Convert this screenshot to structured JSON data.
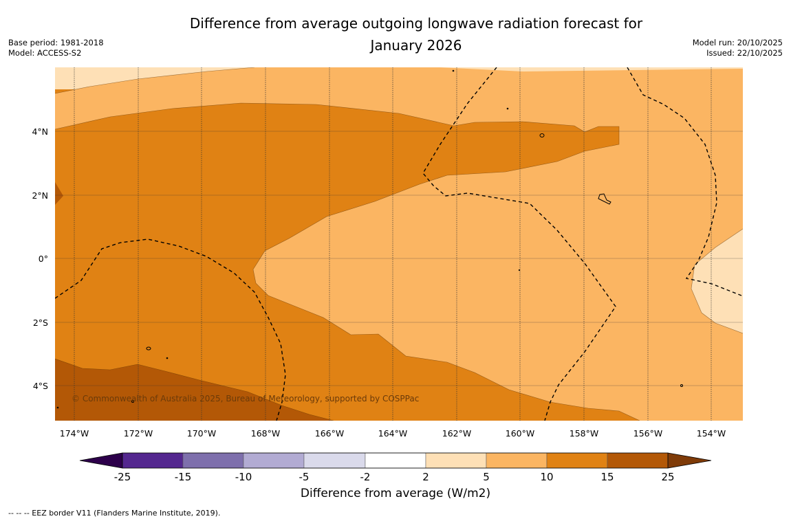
{
  "title": {
    "line1": "Difference from average outgoing longwave radiation forecast for",
    "line2": "January 2026"
  },
  "meta_left": {
    "base_period": "Base period: 1981-2018",
    "model": "Model: ACCESS-S2"
  },
  "meta_right": {
    "model_run": "Model run: 20/10/2025",
    "issued": "Issued: 22/10/2025"
  },
  "map": {
    "lon_labels": [
      "174°W",
      "172°W",
      "170°W",
      "168°W",
      "166°W",
      "164°W",
      "162°W",
      "160°W",
      "158°W",
      "156°W",
      "154°W"
    ],
    "lat_labels": [
      "4°N",
      "2°N",
      "0°",
      "2°S",
      "4°S"
    ],
    "copyright": "© Commonwealth of Australia 2025, Bureau of Meteorology, supported by COSPPac"
  },
  "colorbar": {
    "ticks": [
      "-25",
      "-15",
      "-10",
      "-5",
      "-2",
      "2",
      "5",
      "10",
      "15",
      "25"
    ],
    "colors": [
      "#54278f",
      "#7e6fac",
      "#b2abd3",
      "#dadaeb",
      "#ffffff",
      "#fee0b6",
      "#fbb562",
      "#e08214",
      "#b35806"
    ],
    "under_color": "#2d004b",
    "over_color": "#7f3b08",
    "label": "Difference from average (W/m2)"
  },
  "footnote": "--  --  -- EEZ border V11 (Flanders Marine Institute, 2019)."
}
